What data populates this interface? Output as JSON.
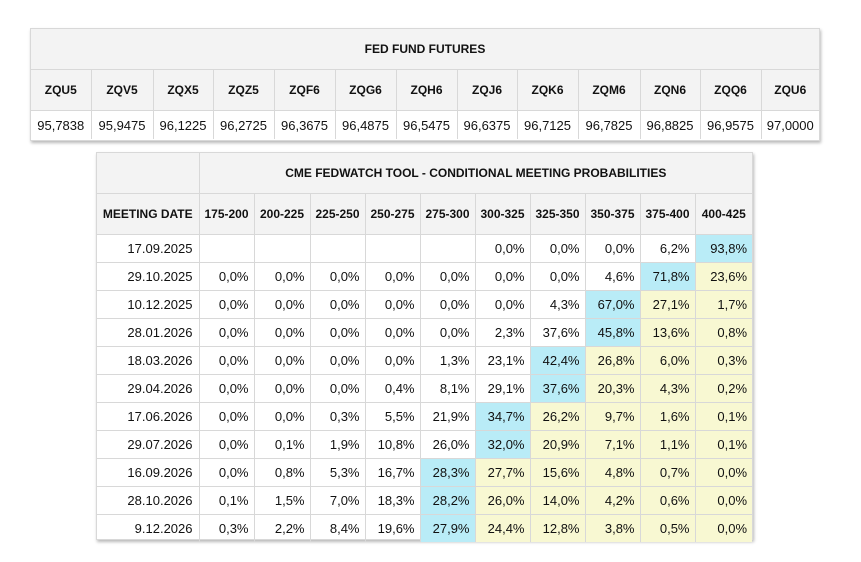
{
  "futures": {
    "title": "FED FUND FUTURES",
    "contracts": [
      {
        "symbol": "ZQU5",
        "price": "95,7838"
      },
      {
        "symbol": "ZQV5",
        "price": "95,9475"
      },
      {
        "symbol": "ZQX5",
        "price": "96,1225"
      },
      {
        "symbol": "ZQZ5",
        "price": "96,2725"
      },
      {
        "symbol": "ZQF6",
        "price": "96,3675"
      },
      {
        "symbol": "ZQG6",
        "price": "96,4875"
      },
      {
        "symbol": "ZQH6",
        "price": "96,5475"
      },
      {
        "symbol": "ZQJ6",
        "price": "96,6375"
      },
      {
        "symbol": "ZQK6",
        "price": "96,7125"
      },
      {
        "symbol": "ZQM6",
        "price": "96,7825"
      },
      {
        "symbol": "ZQN6",
        "price": "96,8825"
      },
      {
        "symbol": "ZQQ6",
        "price": "96,9575"
      },
      {
        "symbol": "ZQU6",
        "price": "97,0000"
      }
    ]
  },
  "fedwatch": {
    "title": "CME FEDWATCH TOOL - CONDITIONAL MEETING PROBABILITIES",
    "date_header": "MEETING DATE",
    "ranges": [
      "175-200",
      "200-225",
      "225-250",
      "250-275",
      "275-300",
      "300-325",
      "325-350",
      "350-375",
      "375-400",
      "400-425"
    ],
    "highlight_color": "#b9ecf7",
    "shade_color": "#f8f8d2",
    "rows": [
      {
        "date": "17.09.2025",
        "values": [
          "",
          "",
          "",
          "",
          "",
          "0,0%",
          "0,0%",
          "0,0%",
          "6,2%",
          "93,8%"
        ],
        "highlight": 9
      },
      {
        "date": "29.10.2025",
        "values": [
          "0,0%",
          "0,0%",
          "0,0%",
          "0,0%",
          "0,0%",
          "0,0%",
          "0,0%",
          "4,6%",
          "71,8%",
          "23,6%"
        ],
        "highlight": 8
      },
      {
        "date": "10.12.2025",
        "values": [
          "0,0%",
          "0,0%",
          "0,0%",
          "0,0%",
          "0,0%",
          "0,0%",
          "4,3%",
          "67,0%",
          "27,1%",
          "1,7%"
        ],
        "highlight": 7
      },
      {
        "date": "28.01.2026",
        "values": [
          "0,0%",
          "0,0%",
          "0,0%",
          "0,0%",
          "0,0%",
          "2,3%",
          "37,6%",
          "45,8%",
          "13,6%",
          "0,8%"
        ],
        "highlight": 7
      },
      {
        "date": "18.03.2026",
        "values": [
          "0,0%",
          "0,0%",
          "0,0%",
          "0,0%",
          "1,3%",
          "23,1%",
          "42,4%",
          "26,8%",
          "6,0%",
          "0,3%"
        ],
        "highlight": 6
      },
      {
        "date": "29.04.2026",
        "values": [
          "0,0%",
          "0,0%",
          "0,0%",
          "0,4%",
          "8,1%",
          "29,1%",
          "37,6%",
          "20,3%",
          "4,3%",
          "0,2%"
        ],
        "highlight": 6
      },
      {
        "date": "17.06.2026",
        "values": [
          "0,0%",
          "0,0%",
          "0,3%",
          "5,5%",
          "21,9%",
          "34,7%",
          "26,2%",
          "9,7%",
          "1,6%",
          "0,1%"
        ],
        "highlight": 5
      },
      {
        "date": "29.07.2026",
        "values": [
          "0,0%",
          "0,1%",
          "1,9%",
          "10,8%",
          "26,0%",
          "32,0%",
          "20,9%",
          "7,1%",
          "1,1%",
          "0,1%"
        ],
        "highlight": 5
      },
      {
        "date": "16.09.2026",
        "values": [
          "0,0%",
          "0,8%",
          "5,3%",
          "16,7%",
          "28,3%",
          "27,7%",
          "15,6%",
          "4,8%",
          "0,7%",
          "0,0%"
        ],
        "highlight": 4
      },
      {
        "date": "28.10.2026",
        "values": [
          "0,1%",
          "1,5%",
          "7,0%",
          "18,3%",
          "28,2%",
          "26,0%",
          "14,0%",
          "4,2%",
          "0,6%",
          "0,0%"
        ],
        "highlight": 4
      },
      {
        "date": "9.12.2026",
        "values": [
          "0,3%",
          "2,2%",
          "8,4%",
          "19,6%",
          "27,9%",
          "24,4%",
          "12,8%",
          "3,8%",
          "0,5%",
          "0,0%"
        ],
        "highlight": 4
      }
    ]
  }
}
